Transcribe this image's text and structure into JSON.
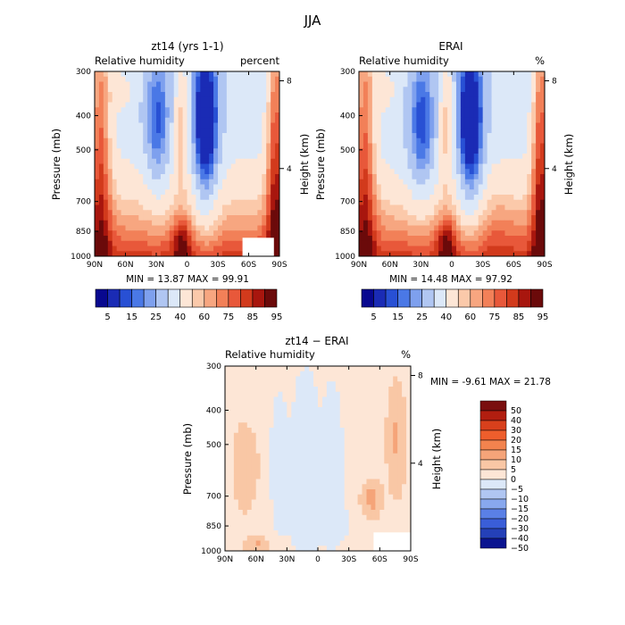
{
  "figure_title": "JJA",
  "panels": [
    {
      "title": "zt14 (yrs 1-1)",
      "left_label": "Relative humidity",
      "right_label": "percent",
      "ylabel": "Pressure (mb)",
      "ylabel2": "Height (km)",
      "min_max": "MIN =   13.87    MAX =   99.91"
    },
    {
      "title": "ERAI",
      "left_label": "Relative humidity",
      "right_label": "%",
      "ylabel": "Pressure (mb)",
      "ylabel2": "Height (km)",
      "min_max": "MIN =   14.48    MAX =   97.92"
    },
    {
      "title": "zt14 − ERAI",
      "left_label": "Relative humidity",
      "right_label": "%",
      "ylabel": "Pressure (mb)",
      "ylabel2": "Height (km)",
      "min_max": "MIN =   -9.61    MAX =   21.78"
    }
  ],
  "colorbars": {
    "rh_labels": [
      "5",
      "15",
      "25",
      "40",
      "60",
      "75",
      "85",
      "95"
    ],
    "diff_labels": [
      "50",
      "40",
      "30",
      "20",
      "15",
      "10",
      "5",
      "0",
      "−5",
      "−10",
      "−15",
      "−20",
      "−30",
      "−40",
      "−50"
    ],
    "rh_colors": [
      "#08088f",
      "#1a2bb5",
      "#2850d4",
      "#4a78e6",
      "#7ea0ee",
      "#b0c6f2",
      "#dce8f8",
      "#fde6d6",
      "#fbc9aa",
      "#f7a680",
      "#f28058",
      "#e8583a",
      "#d23a1c",
      "#a8160e",
      "#6b0a0a"
    ],
    "diff_colors": [
      "#7a0e0e",
      "#b21e10",
      "#d8401c",
      "#ee5e2c",
      "#f2834e",
      "#f5a479",
      "#f9c7a5",
      "#fde6d6",
      "#dce8f8",
      "#b0c6f2",
      "#88a8ee",
      "#5a80e6",
      "#3a5ed8",
      "#2440b8",
      "#0a1490"
    ]
  },
  "chart_data": [
    {
      "type": "heatmap",
      "title": "zt14 (yrs 1-1)",
      "xlabel": "",
      "ylabel": "Pressure (mb)",
      "ylabel_right": "Height (km)",
      "x_ticks": [
        "90N",
        "60N",
        "30N",
        "0",
        "30S",
        "60S",
        "90S"
      ],
      "y_ticks": [
        300,
        400,
        500,
        700,
        850,
        1000
      ],
      "y_ticks_right": [
        8,
        4
      ],
      "scale": "log-pressure",
      "units": "percent",
      "min": 13.87,
      "max": 99.91
    },
    {
      "type": "heatmap",
      "title": "ERAI",
      "xlabel": "",
      "ylabel": "Pressure (mb)",
      "ylabel_right": "Height (km)",
      "x_ticks": [
        "90N",
        "60N",
        "30N",
        "0",
        "30S",
        "60S",
        "90S"
      ],
      "y_ticks": [
        300,
        400,
        500,
        700,
        850,
        1000
      ],
      "y_ticks_right": [
        8,
        4
      ],
      "scale": "log-pressure",
      "units": "%",
      "min": 14.48,
      "max": 97.92
    },
    {
      "type": "heatmap",
      "title": "zt14 − ERAI",
      "xlabel": "",
      "ylabel": "Pressure (mb)",
      "ylabel_right": "Height (km)",
      "x_ticks": [
        "90N",
        "60N",
        "30N",
        "0",
        "30S",
        "60S",
        "90S"
      ],
      "y_ticks": [
        300,
        400,
        500,
        700,
        850,
        1000
      ],
      "y_ticks_right": [
        8,
        4
      ],
      "scale": "log-pressure",
      "units": "%",
      "min": -9.61,
      "max": 21.78
    }
  ]
}
